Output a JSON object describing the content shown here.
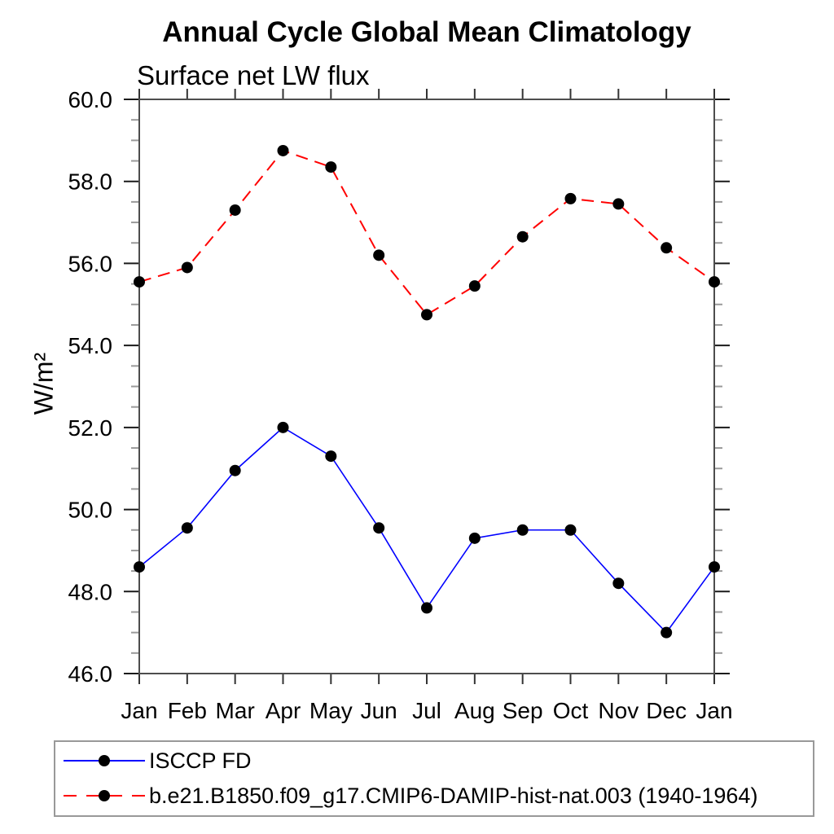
{
  "chart_data": {
    "type": "line",
    "title": "Annual Cycle Global Mean Climatology",
    "subtitle": "Surface net LW flux",
    "ylabel": "W/m²",
    "xlabel": "",
    "x_categories": [
      "Jan",
      "Feb",
      "Mar",
      "Apr",
      "May",
      "Jun",
      "Jul",
      "Aug",
      "Sep",
      "Oct",
      "Nov",
      "Dec",
      "Jan"
    ],
    "ylim": [
      46.0,
      60.0
    ],
    "ytick_labels": [
      "46.0",
      "48.0",
      "50.0",
      "52.0",
      "54.0",
      "56.0",
      "58.0",
      "60.0"
    ],
    "ytick_major_step": 2.0,
    "ytick_minor_step": 0.5,
    "grid": false,
    "legend_position": "bottom-left",
    "marker_color": "#000000",
    "series": [
      {
        "name": "ISCCP FD",
        "color": "#0000ff",
        "line_style": "solid",
        "values": [
          48.6,
          49.55,
          50.95,
          52.0,
          51.3,
          49.55,
          47.6,
          49.3,
          49.5,
          49.5,
          48.2,
          47.0,
          48.6
        ]
      },
      {
        "name": "b.e21.B1850.f09_g17.CMIP6-DAMIP-hist-nat.003 (1940-1964)",
        "color": "#ff0000",
        "line_style": "dashed",
        "values": [
          55.55,
          55.9,
          57.3,
          58.75,
          58.35,
          56.2,
          54.75,
          55.45,
          56.65,
          57.58,
          57.45,
          56.38,
          55.55
        ]
      }
    ]
  }
}
